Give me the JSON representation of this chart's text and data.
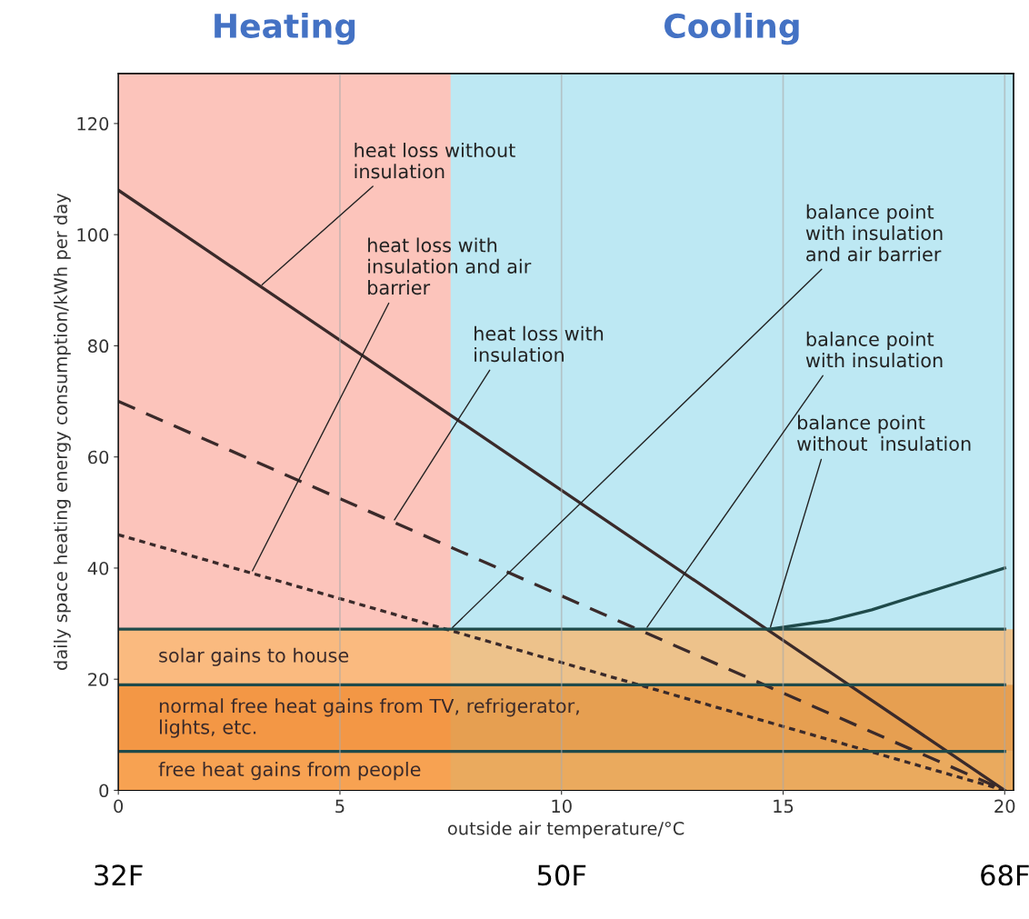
{
  "chart_data": {
    "type": "line",
    "xlabel": "outside air temperature/°C",
    "ylabel": "daily space heating energy consumption/kWh per day",
    "xlim": [
      0,
      20.2
    ],
    "xticks": [
      0,
      5,
      10,
      15,
      20
    ],
    "ylim": [
      0,
      129
    ],
    "yticks": [
      0,
      20,
      40,
      60,
      80,
      100,
      120
    ],
    "x2lim": [
      32,
      68.36
    ],
    "x2ticks": [
      {
        "value": 32,
        "label": "32F"
      },
      {
        "value": 50,
        "label": "50F"
      },
      {
        "value": 68,
        "label": "68F"
      }
    ],
    "grid": "x",
    "series": [
      {
        "color": "#3a2a2a",
        "line_style": "solid",
        "x": [
          0,
          20
        ],
        "values": [
          108,
          0
        ]
      },
      {
        "color": "#3a2a2a",
        "line_style": "dashed",
        "x": [
          0,
          20
        ],
        "values": [
          70,
          0
        ]
      },
      {
        "color": "#3a2a2a",
        "line_style": "dotted",
        "x": [
          0,
          20
        ],
        "values": [
          46,
          0
        ]
      },
      {
        "color": "#1f4a4a",
        "line_style": "solid",
        "x": [
          0,
          20
        ],
        "values": [
          29,
          29
        ]
      },
      {
        "color": "#1f4a4a",
        "line_style": "solid",
        "x": [
          0,
          20
        ],
        "values": [
          19,
          19
        ]
      },
      {
        "color": "#1f4a4a",
        "line_style": "solid",
        "x": [
          0,
          20
        ],
        "values": [
          7,
          7
        ]
      },
      {
        "color": "#1f4a4a",
        "line_style": "solid",
        "x": [
          14.7,
          16,
          17,
          18,
          19,
          20
        ],
        "values": [
          29,
          30.5,
          32.5,
          35,
          37.5,
          40
        ]
      }
    ],
    "bands": [
      {
        "axis": "x",
        "from": 0,
        "to": 7.5,
        "label": "Heating",
        "color": "#fcc4bb"
      },
      {
        "axis": "x",
        "from": 7.5,
        "to": 20.2,
        "label": "Cooling",
        "color": "#bde8f3"
      },
      {
        "axis": "y",
        "from": 19,
        "to": 29,
        "label": "solar gains to house",
        "color": "#f9b870"
      },
      {
        "axis": "y",
        "from": 7,
        "to": 19,
        "label": "normal free heat gains from TV, refrigerator,\nlights, etc.",
        "color": "#f08c28"
      },
      {
        "axis": "y",
        "from": 0,
        "to": 7,
        "label": "free heat gains from people",
        "color": "#f59a38"
      }
    ],
    "annotations": [
      {
        "text": "heat loss without\ninsulation",
        "x": 3.2,
        "y": 90.7
      },
      {
        "text": "heat loss with\ninsulation and air\nbarrier",
        "x": 3.0,
        "y": 39.1
      },
      {
        "text": "heat loss with\ninsulation",
        "x": 6.2,
        "y": 48.3
      },
      {
        "text": "balance point\nwith insulation\nand air barrier",
        "x": 7.5,
        "y": 29
      },
      {
        "text": "balance point\nwith insulation",
        "x": 11.9,
        "y": 29
      },
      {
        "text": "balance point\nwithout  insulation",
        "x": 14.7,
        "y": 29
      }
    ]
  }
}
